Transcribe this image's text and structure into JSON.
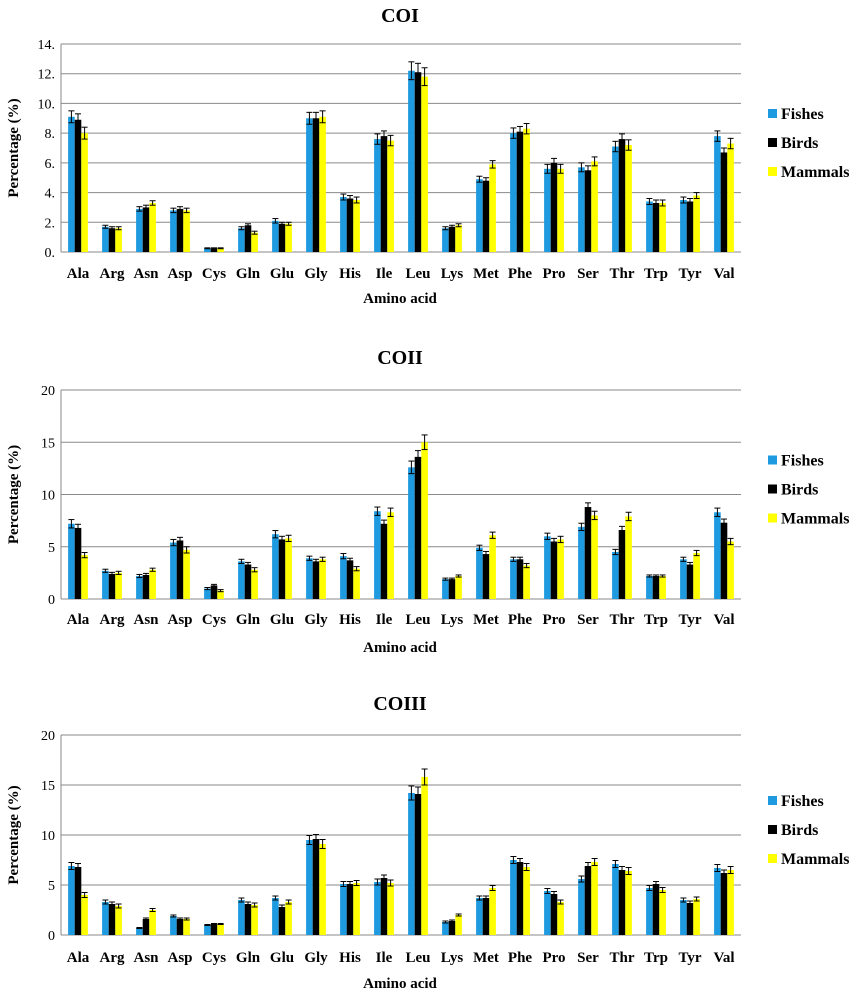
{
  "chart_data": [
    {
      "type": "bar",
      "title": "COI",
      "xlabel": "Amino acid",
      "ylabel": "Percentage (%)",
      "ylim": [
        0,
        14
      ],
      "yticks": [
        "0.",
        "2.",
        "4.",
        "6.",
        "8.",
        "10.",
        "12.",
        "14."
      ],
      "grid": true,
      "legend_position": "right",
      "categories": [
        "Ala",
        "Arg",
        "Asn",
        "Asp",
        "Cys",
        "Gln",
        "Glu",
        "Gly",
        "His",
        "Ile",
        "Leu",
        "Lys",
        "Met",
        "Phe",
        "Pro",
        "Ser",
        "Thr",
        "Trp",
        "Tyr",
        "Val"
      ],
      "series": [
        {
          "name": "Fishes",
          "color": "#1E9BE0",
          "values": [
            9.1,
            1.7,
            2.9,
            2.8,
            0.25,
            1.6,
            2.1,
            9.0,
            3.7,
            7.6,
            12.2,
            1.6,
            4.9,
            8.0,
            5.6,
            5.7,
            7.1,
            3.4,
            3.5,
            7.8
          ],
          "errors": [
            0.4,
            0.1,
            0.15,
            0.15,
            0.03,
            0.1,
            0.15,
            0.4,
            0.2,
            0.35,
            0.6,
            0.1,
            0.2,
            0.35,
            0.3,
            0.3,
            0.35,
            0.2,
            0.2,
            0.35
          ]
        },
        {
          "name": "Birds",
          "color": "#000000",
          "values": [
            8.9,
            1.6,
            3.0,
            2.9,
            0.25,
            1.8,
            1.9,
            9.0,
            3.6,
            7.8,
            12.1,
            1.7,
            4.8,
            8.1,
            6.0,
            5.5,
            7.6,
            3.3,
            3.4,
            6.7
          ],
          "errors": [
            0.4,
            0.1,
            0.15,
            0.15,
            0.03,
            0.1,
            0.1,
            0.4,
            0.2,
            0.35,
            0.6,
            0.1,
            0.2,
            0.35,
            0.3,
            0.3,
            0.35,
            0.2,
            0.2,
            0.3
          ]
        },
        {
          "name": "Mammals",
          "color": "#FFFF00",
          "values": [
            8.0,
            1.6,
            3.3,
            2.8,
            0.25,
            1.3,
            1.9,
            9.1,
            3.5,
            7.5,
            11.8,
            1.8,
            5.9,
            8.3,
            5.6,
            6.1,
            7.2,
            3.3,
            3.8,
            7.3
          ],
          "errors": [
            0.4,
            0.1,
            0.15,
            0.15,
            0.03,
            0.1,
            0.1,
            0.4,
            0.2,
            0.35,
            0.6,
            0.1,
            0.25,
            0.35,
            0.3,
            0.3,
            0.35,
            0.2,
            0.2,
            0.35
          ]
        }
      ]
    },
    {
      "type": "bar",
      "title": "COII",
      "xlabel": "Amino acid",
      "ylabel": "Percentage (%)",
      "ylim": [
        0,
        20
      ],
      "yticks": [
        "0",
        "5",
        "10",
        "15",
        "20"
      ],
      "grid": true,
      "legend_position": "right",
      "categories": [
        "Ala",
        "Arg",
        "Asn",
        "Asp",
        "Cys",
        "Gln",
        "Glu",
        "Gly",
        "His",
        "Ile",
        "Leu",
        "Lys",
        "Met",
        "Phe",
        "Pro",
        "Ser",
        "Thr",
        "Trp",
        "Tyr",
        "Val"
      ],
      "series": [
        {
          "name": "Fishes",
          "color": "#1E9BE0",
          "values": [
            7.2,
            2.7,
            2.2,
            5.4,
            1.0,
            3.6,
            6.2,
            3.9,
            4.1,
            8.4,
            12.6,
            1.9,
            4.9,
            3.8,
            6.0,
            6.9,
            4.5,
            2.2,
            3.8,
            8.3
          ],
          "errors": [
            0.4,
            0.15,
            0.15,
            0.3,
            0.1,
            0.2,
            0.35,
            0.2,
            0.25,
            0.4,
            0.6,
            0.1,
            0.25,
            0.2,
            0.3,
            0.35,
            0.25,
            0.1,
            0.2,
            0.4
          ]
        },
        {
          "name": "Birds",
          "color": "#000000",
          "values": [
            6.8,
            2.4,
            2.3,
            5.6,
            1.3,
            3.3,
            5.7,
            3.6,
            3.7,
            7.2,
            13.6,
            1.9,
            4.3,
            3.8,
            5.5,
            8.8,
            6.6,
            2.2,
            3.3,
            7.3
          ],
          "errors": [
            0.35,
            0.15,
            0.15,
            0.3,
            0.1,
            0.2,
            0.3,
            0.2,
            0.2,
            0.35,
            0.6,
            0.1,
            0.25,
            0.2,
            0.3,
            0.4,
            0.35,
            0.1,
            0.2,
            0.35
          ]
        },
        {
          "name": "Mammals",
          "color": "#FFFF00",
          "values": [
            4.2,
            2.5,
            2.8,
            4.7,
            0.8,
            2.8,
            5.8,
            3.8,
            2.9,
            8.3,
            15.0,
            2.2,
            6.1,
            3.2,
            5.7,
            8.0,
            7.9,
            2.2,
            4.4,
            5.5
          ],
          "errors": [
            0.25,
            0.15,
            0.15,
            0.3,
            0.1,
            0.2,
            0.3,
            0.2,
            0.2,
            0.4,
            0.7,
            0.1,
            0.3,
            0.2,
            0.3,
            0.4,
            0.4,
            0.1,
            0.25,
            0.3
          ]
        }
      ]
    },
    {
      "type": "bar",
      "title": "COIII",
      "xlabel": "Amino acid",
      "ylabel": "Percentage (%)",
      "ylim": [
        0,
        20
      ],
      "yticks": [
        "0",
        "5",
        "10",
        "15",
        "20"
      ],
      "grid": true,
      "legend_position": "right",
      "categories": [
        "Ala",
        "Arg",
        "Asn",
        "Asp",
        "Cys",
        "Gln",
        "Glu",
        "Gly",
        "His",
        "Ile",
        "Leu",
        "Lys",
        "Met",
        "Phe",
        "Pro",
        "Ser",
        "Thr",
        "Trp",
        "Tyr",
        "Val"
      ],
      "series": [
        {
          "name": "Fishes",
          "color": "#1E9BE0",
          "values": [
            6.9,
            3.3,
            0.7,
            1.9,
            1.0,
            3.5,
            3.7,
            9.5,
            5.1,
            5.3,
            14.2,
            1.3,
            3.7,
            7.5,
            4.4,
            5.6,
            7.1,
            4.7,
            3.5,
            6.7
          ],
          "errors": [
            0.35,
            0.2,
            0.05,
            0.1,
            0.05,
            0.2,
            0.2,
            0.45,
            0.25,
            0.3,
            0.7,
            0.1,
            0.2,
            0.35,
            0.25,
            0.3,
            0.35,
            0.25,
            0.2,
            0.35
          ]
        },
        {
          "name": "Birds",
          "color": "#000000",
          "values": [
            6.8,
            3.1,
            1.6,
            1.6,
            1.1,
            3.1,
            2.8,
            9.6,
            5.1,
            5.7,
            14.1,
            1.4,
            3.7,
            7.3,
            4.1,
            6.9,
            6.5,
            5.1,
            3.2,
            6.2
          ],
          "errors": [
            0.35,
            0.2,
            0.1,
            0.1,
            0.05,
            0.2,
            0.2,
            0.45,
            0.25,
            0.3,
            0.7,
            0.1,
            0.2,
            0.35,
            0.25,
            0.35,
            0.35,
            0.25,
            0.2,
            0.3
          ]
        },
        {
          "name": "Mammals",
          "color": "#FFFF00",
          "values": [
            4.0,
            2.9,
            2.5,
            1.6,
            1.1,
            3.0,
            3.3,
            9.1,
            5.2,
            5.2,
            15.8,
            2.0,
            4.7,
            6.8,
            3.3,
            7.3,
            6.4,
            4.5,
            3.6,
            6.5
          ],
          "errors": [
            0.25,
            0.2,
            0.15,
            0.1,
            0.05,
            0.2,
            0.2,
            0.45,
            0.25,
            0.3,
            0.8,
            0.1,
            0.25,
            0.35,
            0.2,
            0.35,
            0.35,
            0.25,
            0.2,
            0.35
          ]
        }
      ]
    }
  ]
}
